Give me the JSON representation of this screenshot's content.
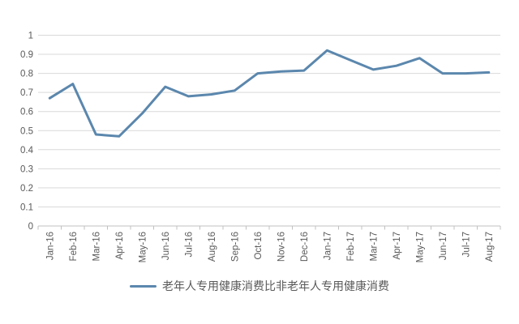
{
  "chart_data": {
    "type": "line",
    "title": "",
    "xlabel": "",
    "ylabel": "",
    "categories": [
      "Jan-16",
      "Feb-16",
      "Mar-16",
      "Apr-16",
      "May-16",
      "Jun-16",
      "Jul-16",
      "Aug-16",
      "Sep-16",
      "Oct-16",
      "Nov-16",
      "Dec-16",
      "Jan-17",
      "Feb-17",
      "Mar-17",
      "Apr-17",
      "May-17",
      "Jun-17",
      "Jul-17",
      "Aug-17"
    ],
    "series": [
      {
        "name": "老年人专用健康消费比非老年人专用健康消费",
        "values": [
          0.67,
          0.745,
          0.48,
          0.47,
          0.59,
          0.73,
          0.68,
          0.69,
          0.71,
          0.8,
          0.81,
          0.815,
          0.92,
          0.87,
          0.82,
          0.84,
          0.88,
          0.8,
          0.8,
          0.805
        ],
        "color": "#5b87ad"
      }
    ],
    "ylim": [
      0,
      1
    ],
    "ytick_labels": [
      "0",
      "0.1",
      "0.2",
      "0.3",
      "0.4",
      "0.5",
      "0.6",
      "0.7",
      "0.8",
      "0.9",
      "1"
    ],
    "grid": true,
    "legend_position": "bottom",
    "colors": {
      "gridline": "#d9d9d9",
      "axis": "#c0c0c0",
      "tick_label": "#595959",
      "legend_text": "#595959",
      "background": "#ffffff"
    }
  }
}
